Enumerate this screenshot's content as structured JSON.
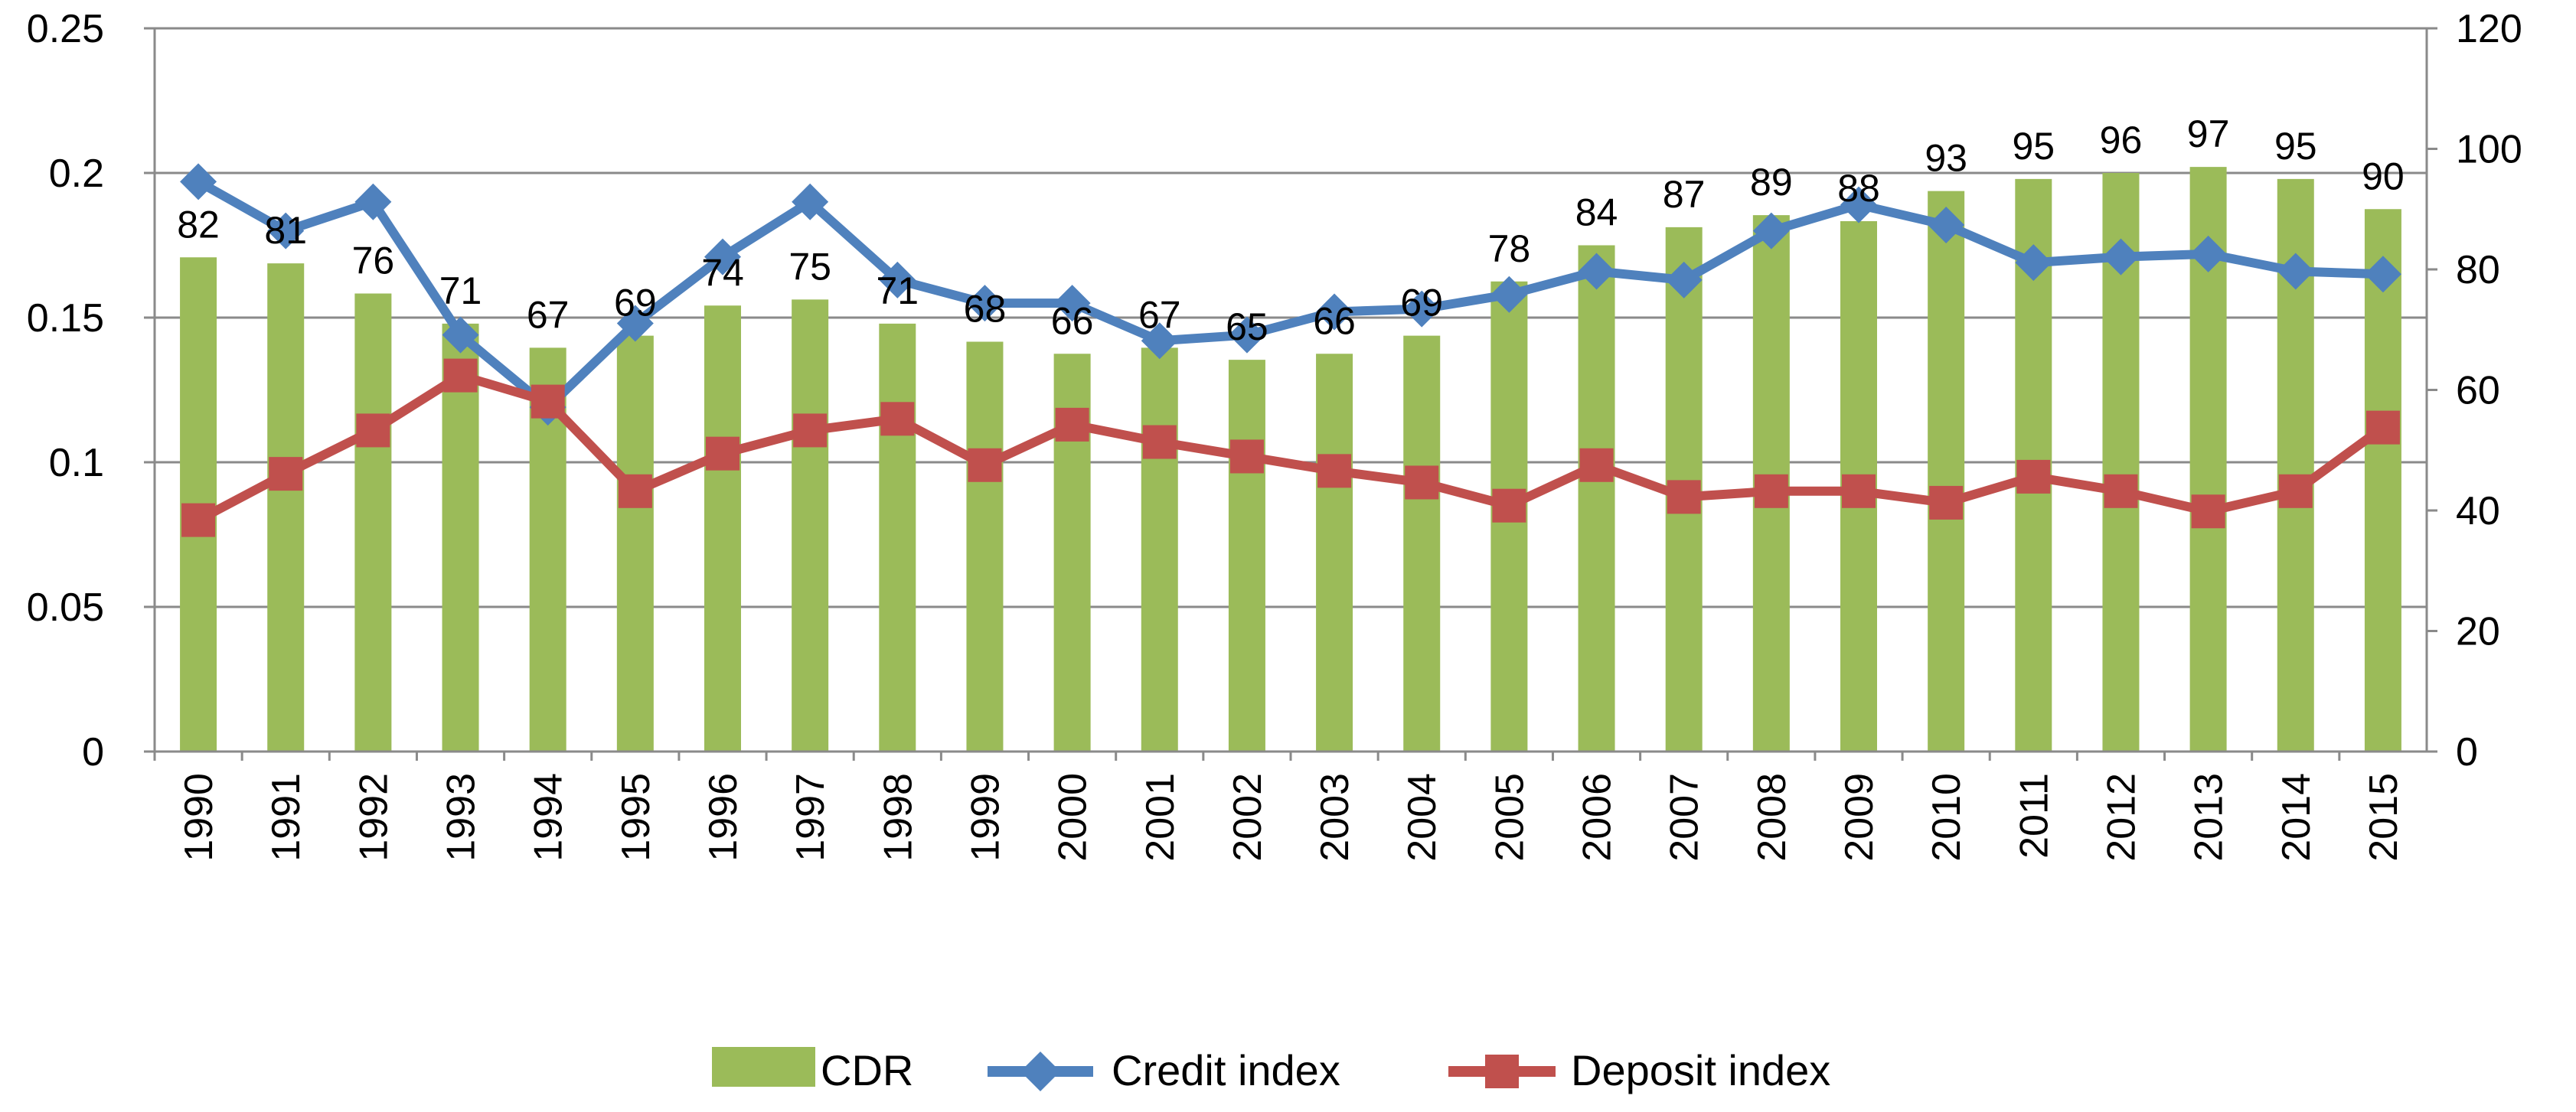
{
  "chart_data": {
    "type": "bar+line",
    "title": "",
    "categories": [
      "1990",
      "1991",
      "1992",
      "1993",
      "1994",
      "1995",
      "1996",
      "1997",
      "1998",
      "1999",
      "2000",
      "2001",
      "2002",
      "2003",
      "2004",
      "2005",
      "2006",
      "2007",
      "2008",
      "2009",
      "2010",
      "2011",
      "2012",
      "2013",
      "2014",
      "2015"
    ],
    "series": [
      {
        "name": "CDR",
        "type": "bar",
        "axis": "right",
        "color": "#9bbb59",
        "values": [
          82,
          81,
          76,
          71,
          67,
          69,
          74,
          75,
          71,
          68,
          66,
          67,
          65,
          66,
          69,
          78,
          84,
          87,
          89,
          88,
          93,
          95,
          96,
          97,
          95,
          90
        ]
      },
      {
        "name": "Credit index",
        "type": "line",
        "axis": "left",
        "marker": "diamond",
        "color": "#4f81bd",
        "values": [
          0.197,
          0.18,
          0.19,
          0.144,
          0.119,
          0.148,
          0.171,
          0.19,
          0.163,
          0.155,
          0.155,
          0.142,
          0.144,
          0.152,
          0.153,
          0.158,
          0.166,
          0.163,
          0.18,
          0.189,
          0.182,
          0.169,
          0.171,
          0.172,
          0.166,
          0.165
        ]
      },
      {
        "name": "Deposit index",
        "type": "line",
        "axis": "left",
        "marker": "square",
        "color": "#c0504d",
        "values": [
          0.08,
          0.096,
          0.111,
          0.13,
          0.121,
          0.09,
          0.103,
          0.111,
          0.115,
          0.099,
          0.113,
          0.107,
          0.102,
          0.097,
          0.093,
          0.085,
          0.099,
          0.088,
          0.09,
          0.09,
          0.086,
          0.095,
          0.09,
          0.083,
          0.09,
          0.112
        ]
      }
    ],
    "data_labels": [
      "82",
      "81",
      "76",
      "71",
      "67",
      "69",
      "74",
      "75",
      "71",
      "68",
      "66",
      "67",
      "65",
      "66",
      "69",
      "78",
      "84",
      "87",
      "89",
      "88",
      "93",
      "95",
      "96",
      "97",
      "95",
      "90"
    ],
    "y_left": {
      "ylim": [
        0,
        0.25
      ],
      "ticks": [
        "0",
        "0.05",
        "0.1",
        "0.15",
        "0.2",
        "0.25"
      ]
    },
    "y_right": {
      "ylim": [
        0,
        120
      ],
      "ticks": [
        "0",
        "20",
        "40",
        "60",
        "80",
        "100",
        "120"
      ]
    },
    "xlabel": "",
    "ylabel": "",
    "grid": true,
    "legend": {
      "position": "bottom",
      "items": [
        "CDR",
        "Credit index",
        "Deposit index"
      ]
    }
  }
}
